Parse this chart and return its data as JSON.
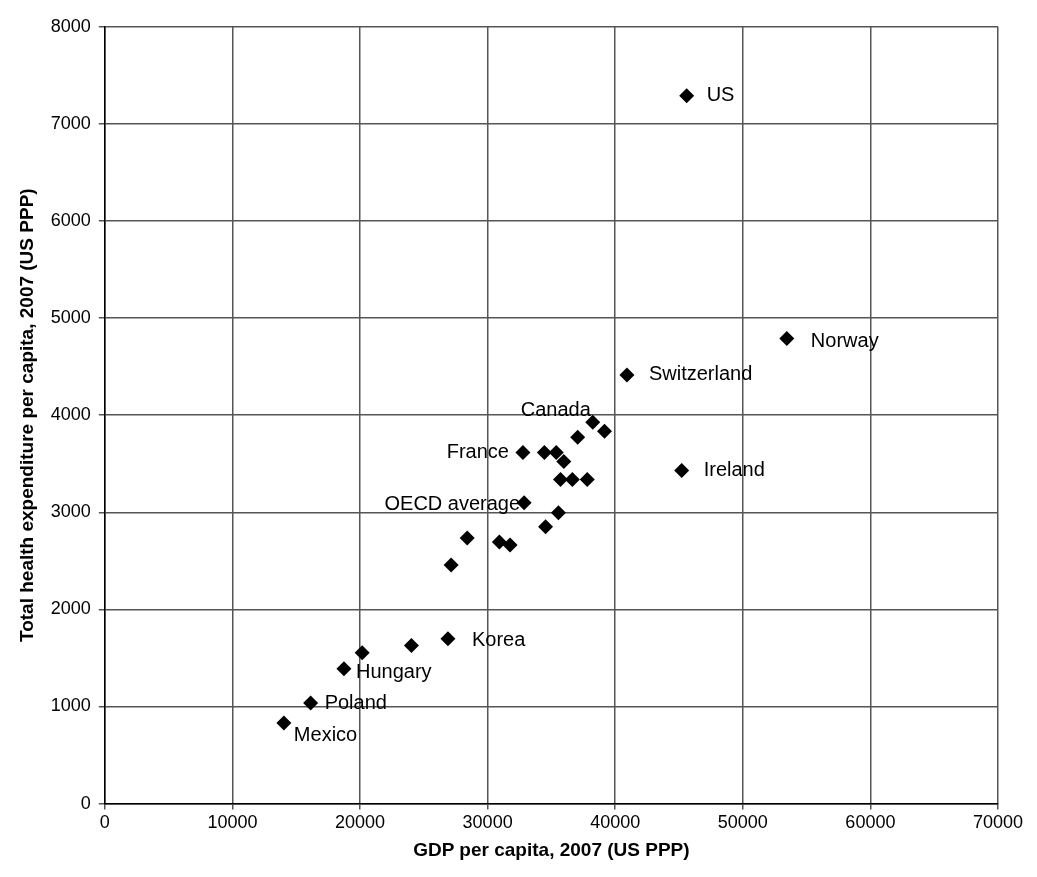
{
  "chart_data": {
    "type": "scatter",
    "xlabel": "GDP per capita, 2007 (US PPP)",
    "ylabel": "Total health expenditure per capita, 2007 (US PPP)",
    "x": [
      45600,
      53450,
      40920,
      45210,
      38240,
      39160,
      37060,
      32770,
      34450,
      35380,
      35970,
      35710,
      36640,
      37810,
      32860,
      35550,
      34540,
      28400,
      30920,
      31760,
      27140,
      26890,
      24030,
      20170,
      18740,
      16130,
      14030
    ],
    "series": [
      {
        "color": "#000000",
        "values": [
          7290,
          4790,
          4415,
          3430,
          3927,
          3834,
          3772,
          3617,
          3617,
          3617,
          3523,
          3337,
          3337,
          3337,
          3098,
          2995,
          2850,
          2736,
          2694,
          2663,
          2456,
          1699,
          1627,
          1554,
          1389,
          1036,
          829
        ]
      }
    ],
    "xlim": [
      0,
      70000
    ],
    "xticks": [
      0,
      10000,
      20000,
      30000,
      40000,
      50000,
      60000,
      70000
    ],
    "ylim": [
      0,
      8000
    ],
    "yticks": [
      0,
      1000,
      2000,
      3000,
      4000,
      5000,
      6000,
      7000,
      8000
    ],
    "grid": true,
    "legend": false,
    "marker": "diamond",
    "annotations": [
      {
        "text": "US",
        "x": 45600,
        "y": 7290
      },
      {
        "text": "Norway",
        "x": 53450,
        "y": 4790
      },
      {
        "text": "Switzerland",
        "x": 40920,
        "y": 4415
      },
      {
        "text": "Ireland",
        "x": 45210,
        "y": 3430
      },
      {
        "text": "Canada",
        "x": 38240,
        "y": 3927
      },
      {
        "text": "France",
        "x": 32770,
        "y": 3617
      },
      {
        "text": "OECD average",
        "x": 32860,
        "y": 3098
      },
      {
        "text": "Korea",
        "x": 26890,
        "y": 1699
      },
      {
        "text": "Hungary",
        "x": 18740,
        "y": 1389
      },
      {
        "text": "Poland",
        "x": 16130,
        "y": 1036
      },
      {
        "text": "Mexico",
        "x": 14030,
        "y": 829
      }
    ]
  }
}
